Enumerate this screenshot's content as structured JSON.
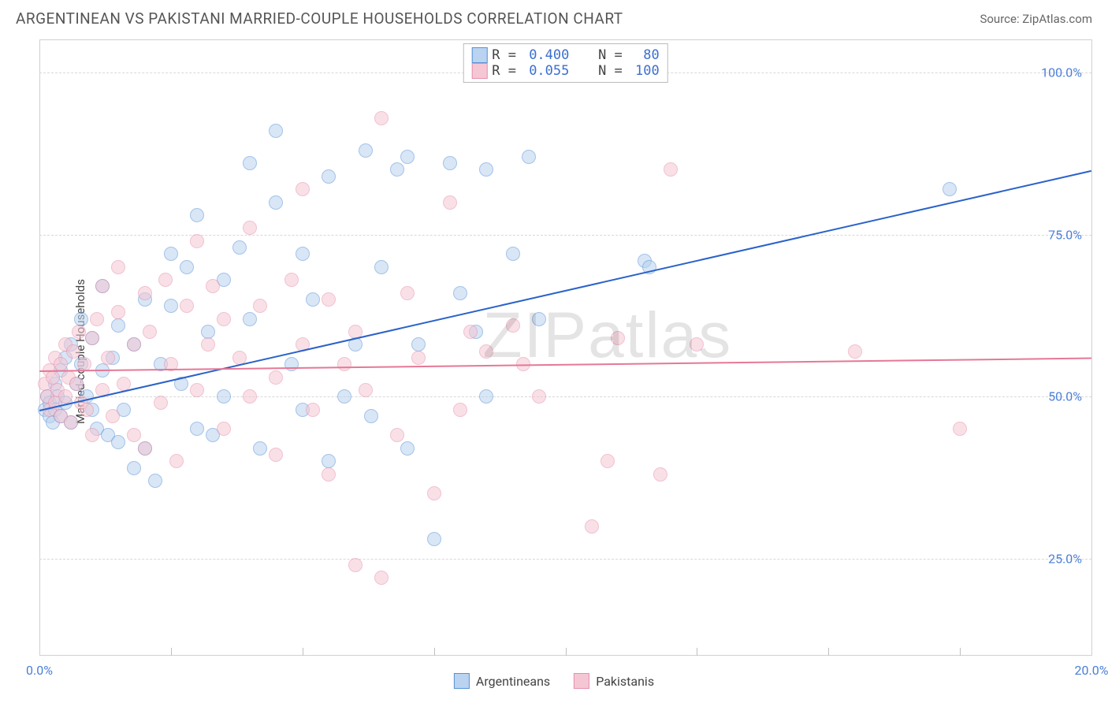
{
  "title": "ARGENTINEAN VS PAKISTANI MARRIED-COUPLE HOUSEHOLDS CORRELATION CHART",
  "source": "Source: ZipAtlas.com",
  "ylabel": "Married-couple Households",
  "watermark": "ZIPatlas",
  "chart": {
    "type": "scatter",
    "xlim": [
      0,
      20
    ],
    "ylim": [
      10,
      105
    ],
    "xticks": [
      {
        "v": 0,
        "label": "0.0%"
      },
      {
        "v": 20,
        "label": "20.0%"
      }
    ],
    "xtick_minor": [
      2.5,
      5,
      7.5,
      10,
      12.5,
      15,
      17.5
    ],
    "yticks": [
      {
        "v": 25,
        "label": "25.0%"
      },
      {
        "v": 50,
        "label": "50.0%"
      },
      {
        "v": 75,
        "label": "75.0%"
      },
      {
        "v": 100,
        "label": "100.0%"
      }
    ],
    "background_color": "#ffffff",
    "grid_color": "#d8d8d8",
    "marker_radius": 9,
    "marker_opacity": 0.55,
    "series": [
      {
        "name": "Argentineans",
        "fill": "#b9d3f0",
        "stroke": "#5a92d6",
        "line_color": "#2a62c9",
        "r": "0.400",
        "n": "80",
        "trend": {
          "x1": 0,
          "y1": 48,
          "x2": 20,
          "y2": 85
        },
        "points": [
          [
            0.1,
            48
          ],
          [
            0.15,
            50
          ],
          [
            0.2,
            47
          ],
          [
            0.2,
            49
          ],
          [
            0.25,
            46
          ],
          [
            0.3,
            52
          ],
          [
            0.3,
            48
          ],
          [
            0.35,
            50
          ],
          [
            0.4,
            47
          ],
          [
            0.4,
            54
          ],
          [
            0.5,
            49
          ],
          [
            0.5,
            56
          ],
          [
            0.6,
            46
          ],
          [
            0.6,
            58
          ],
          [
            0.7,
            52
          ],
          [
            0.8,
            55
          ],
          [
            0.8,
            62
          ],
          [
            0.9,
            50
          ],
          [
            1.0,
            48
          ],
          [
            1.0,
            59
          ],
          [
            1.1,
            45
          ],
          [
            1.2,
            54
          ],
          [
            1.2,
            67
          ],
          [
            1.3,
            44
          ],
          [
            1.4,
            56
          ],
          [
            1.5,
            43
          ],
          [
            1.5,
            61
          ],
          [
            1.6,
            48
          ],
          [
            1.8,
            39
          ],
          [
            1.8,
            58
          ],
          [
            2.0,
            42
          ],
          [
            2.0,
            65
          ],
          [
            2.2,
            37
          ],
          [
            2.3,
            55
          ],
          [
            2.5,
            64
          ],
          [
            2.5,
            72
          ],
          [
            2.7,
            52
          ],
          [
            2.8,
            70
          ],
          [
            3.0,
            45
          ],
          [
            3.0,
            78
          ],
          [
            3.2,
            60
          ],
          [
            3.3,
            44
          ],
          [
            3.5,
            68
          ],
          [
            3.5,
            50
          ],
          [
            3.8,
            73
          ],
          [
            4.0,
            62
          ],
          [
            4.0,
            86
          ],
          [
            4.2,
            42
          ],
          [
            4.5,
            80
          ],
          [
            4.5,
            91
          ],
          [
            4.8,
            55
          ],
          [
            5.0,
            48
          ],
          [
            5.0,
            72
          ],
          [
            5.2,
            65
          ],
          [
            5.5,
            84
          ],
          [
            5.5,
            40
          ],
          [
            5.8,
            50
          ],
          [
            6.0,
            58
          ],
          [
            6.2,
            88
          ],
          [
            6.3,
            47
          ],
          [
            6.5,
            70
          ],
          [
            6.8,
            85
          ],
          [
            7.0,
            42
          ],
          [
            7.0,
            87
          ],
          [
            7.2,
            58
          ],
          [
            7.5,
            28
          ],
          [
            7.8,
            86
          ],
          [
            8.0,
            66
          ],
          [
            8.3,
            60
          ],
          [
            8.5,
            50
          ],
          [
            8.5,
            85
          ],
          [
            9.0,
            72
          ],
          [
            9.3,
            87
          ],
          [
            9.5,
            62
          ],
          [
            11.5,
            71
          ],
          [
            11.6,
            70
          ],
          [
            17.3,
            82
          ]
        ]
      },
      {
        "name": "Pakistanis",
        "fill": "#f5c7d4",
        "stroke": "#e690ab",
        "line_color": "#e57896",
        "r": "0.055",
        "n": "100",
        "trend": {
          "x1": 0,
          "y1": 54,
          "x2": 20,
          "y2": 56
        },
        "points": [
          [
            0.1,
            52
          ],
          [
            0.15,
            50
          ],
          [
            0.2,
            54
          ],
          [
            0.2,
            48
          ],
          [
            0.25,
            53
          ],
          [
            0.3,
            49
          ],
          [
            0.3,
            56
          ],
          [
            0.35,
            51
          ],
          [
            0.4,
            55
          ],
          [
            0.4,
            47
          ],
          [
            0.5,
            58
          ],
          [
            0.5,
            50
          ],
          [
            0.55,
            53
          ],
          [
            0.6,
            46
          ],
          [
            0.65,
            57
          ],
          [
            0.7,
            52
          ],
          [
            0.75,
            60
          ],
          [
            0.8,
            49
          ],
          [
            0.85,
            55
          ],
          [
            0.9,
            48
          ],
          [
            1.0,
            59
          ],
          [
            1.0,
            44
          ],
          [
            1.1,
            62
          ],
          [
            1.2,
            51
          ],
          [
            1.2,
            67
          ],
          [
            1.3,
            56
          ],
          [
            1.4,
            47
          ],
          [
            1.5,
            63
          ],
          [
            1.5,
            70
          ],
          [
            1.6,
            52
          ],
          [
            1.8,
            58
          ],
          [
            1.8,
            44
          ],
          [
            2.0,
            66
          ],
          [
            2.0,
            42
          ],
          [
            2.1,
            60
          ],
          [
            2.3,
            49
          ],
          [
            2.4,
            68
          ],
          [
            2.5,
            55
          ],
          [
            2.6,
            40
          ],
          [
            2.8,
            64
          ],
          [
            3.0,
            51
          ],
          [
            3.0,
            74
          ],
          [
            3.2,
            58
          ],
          [
            3.3,
            67
          ],
          [
            3.5,
            45
          ],
          [
            3.5,
            62
          ],
          [
            3.8,
            56
          ],
          [
            4.0,
            50
          ],
          [
            4.0,
            76
          ],
          [
            4.2,
            64
          ],
          [
            4.5,
            53
          ],
          [
            4.5,
            41
          ],
          [
            4.8,
            68
          ],
          [
            5.0,
            58
          ],
          [
            5.0,
            82
          ],
          [
            5.2,
            48
          ],
          [
            5.5,
            38
          ],
          [
            5.5,
            65
          ],
          [
            5.8,
            55
          ],
          [
            6.0,
            60
          ],
          [
            6.0,
            24
          ],
          [
            6.2,
            51
          ],
          [
            6.5,
            22
          ],
          [
            6.5,
            93
          ],
          [
            6.8,
            44
          ],
          [
            7.0,
            66
          ],
          [
            7.2,
            56
          ],
          [
            7.5,
            35
          ],
          [
            7.8,
            80
          ],
          [
            8.0,
            48
          ],
          [
            8.2,
            60
          ],
          [
            8.5,
            57
          ],
          [
            9.0,
            61
          ],
          [
            9.2,
            55
          ],
          [
            9.5,
            50
          ],
          [
            10.5,
            30
          ],
          [
            10.8,
            40
          ],
          [
            11.0,
            59
          ],
          [
            11.8,
            38
          ],
          [
            12.0,
            85
          ],
          [
            12.5,
            58
          ],
          [
            15.5,
            57
          ],
          [
            17.5,
            45
          ]
        ]
      }
    ]
  },
  "legend_top": {
    "rows": [
      {
        "swatch_fill": "#b9d3f0",
        "swatch_stroke": "#5a92d6",
        "r": "0.400",
        "n": " 80"
      },
      {
        "swatch_fill": "#f5c7d4",
        "swatch_stroke": "#e690ab",
        "r": "0.055",
        "n": "100"
      }
    ]
  },
  "legend_bottom": [
    {
      "swatch_fill": "#b9d3f0",
      "swatch_stroke": "#5a92d6",
      "label": "Argentineans"
    },
    {
      "swatch_fill": "#f5c7d4",
      "swatch_stroke": "#e690ab",
      "label": "Pakistanis"
    }
  ]
}
